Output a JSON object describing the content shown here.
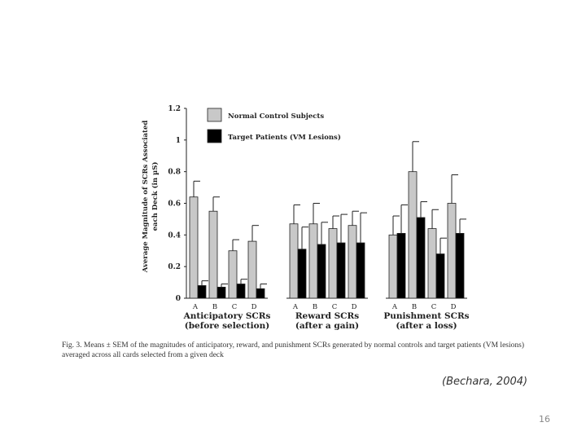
{
  "slide": {
    "citation": "(Bechara, 2004)",
    "page_number": "16"
  },
  "figure": {
    "caption": "Fig. 3. Means ± SEM of the magnitudes of anticipatory, reward, and punishment SCRs generated by normal controls and target patients (VM lesions) averaged across all cards selected from a given deck"
  },
  "colors": {
    "control_fill": "#c8c8c8",
    "patient_fill": "#000000",
    "axis": "#222222"
  },
  "chart_data": {
    "type": "bar",
    "title": "",
    "ylabel": "Average Magnitude of SCRs Associated each Deck (in µS)",
    "ylabel_lines": [
      "Average Magnitude of SCRs Associated",
      "each Deck (in µS)"
    ],
    "ylim": [
      0,
      1.2
    ],
    "yticks": [
      "0",
      "0.2",
      "0.4",
      "0.6",
      "0.8",
      "1",
      "1.2"
    ],
    "legend_position": "top-left",
    "series": [
      {
        "name": "Normal Control Subjects",
        "color": "#c8c8c8"
      },
      {
        "name": "Target Patients (VM Lesions)",
        "color": "#000000"
      }
    ],
    "groups": [
      {
        "label_line1": "Anticipatory SCRs",
        "label_line2": "(before selection)",
        "categories": [
          "A",
          "B",
          "C",
          "D"
        ],
        "control": [
          0.64,
          0.55,
          0.3,
          0.36
        ],
        "control_err": [
          0.1,
          0.09,
          0.07,
          0.1
        ],
        "patients": [
          0.08,
          0.07,
          0.09,
          0.06
        ],
        "patients_err": [
          0.03,
          0.02,
          0.03,
          0.03
        ]
      },
      {
        "label_line1": "Reward SCRs",
        "label_line2": "(after a gain)",
        "categories": [
          "A",
          "B",
          "C",
          "D"
        ],
        "control": [
          0.47,
          0.47,
          0.44,
          0.46
        ],
        "control_err": [
          0.12,
          0.13,
          0.08,
          0.09
        ],
        "patients": [
          0.31,
          0.34,
          0.35,
          0.35
        ],
        "patients_err": [
          0.14,
          0.14,
          0.18,
          0.19
        ]
      },
      {
        "label_line1": "Punishment SCRs",
        "label_line2": "(after a loss)",
        "categories": [
          "A",
          "B",
          "C",
          "D"
        ],
        "control": [
          0.4,
          0.8,
          0.44,
          0.6
        ],
        "control_err": [
          0.12,
          0.19,
          0.12,
          0.18
        ],
        "patients": [
          0.41,
          0.51,
          0.28,
          0.41
        ],
        "patients_err": [
          0.18,
          0.1,
          0.1,
          0.09
        ]
      }
    ]
  }
}
